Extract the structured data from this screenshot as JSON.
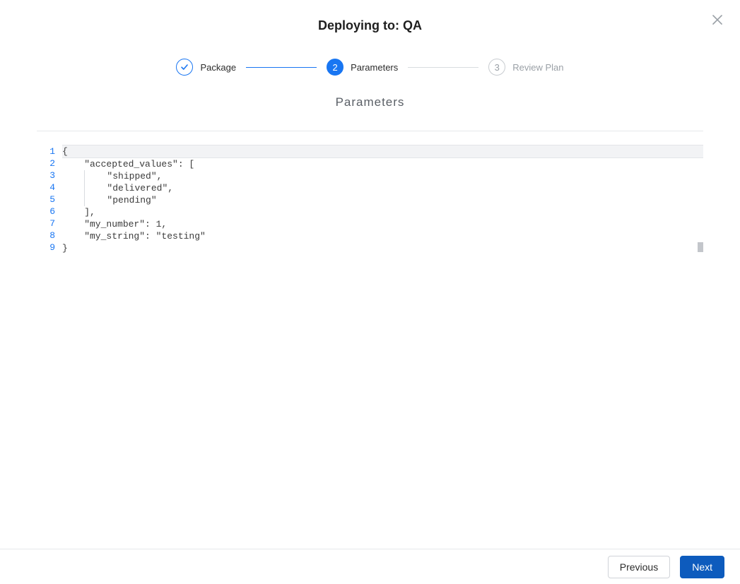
{
  "header": {
    "title": "Deploying to: QA"
  },
  "stepper": {
    "steps": [
      {
        "label": "Package",
        "state": "completed"
      },
      {
        "label": "Parameters",
        "state": "active",
        "number": "2"
      },
      {
        "label": "Review Plan",
        "state": "upcoming",
        "number": "3"
      }
    ]
  },
  "section": {
    "title": "Parameters"
  },
  "editor": {
    "highlighted_line_index": 0,
    "line_number_color": "#1976f2",
    "highlight_bg": "#f2f3f5",
    "indent_guide_color": "#d9dce0",
    "scroll_marker_color": "#c3c6cb",
    "lines": [
      "{",
      "    \"accepted_values\": [",
      "        \"shipped\",",
      "        \"delivered\",",
      "        \"pending\"",
      "    ],",
      "    \"my_number\": 1,",
      "    \"my_string\": \"testing\"",
      "}"
    ],
    "indent_guides": [
      [],
      [],
      [
        4
      ],
      [
        4
      ],
      [
        4
      ],
      [],
      [],
      [],
      []
    ]
  },
  "footer": {
    "previous_label": "Previous",
    "next_label": "Next"
  },
  "colors": {
    "primary": "#1976f2",
    "primary_button": "#0d5bbd",
    "border": "#e6e8eb",
    "muted_text": "#9aa0a6"
  }
}
